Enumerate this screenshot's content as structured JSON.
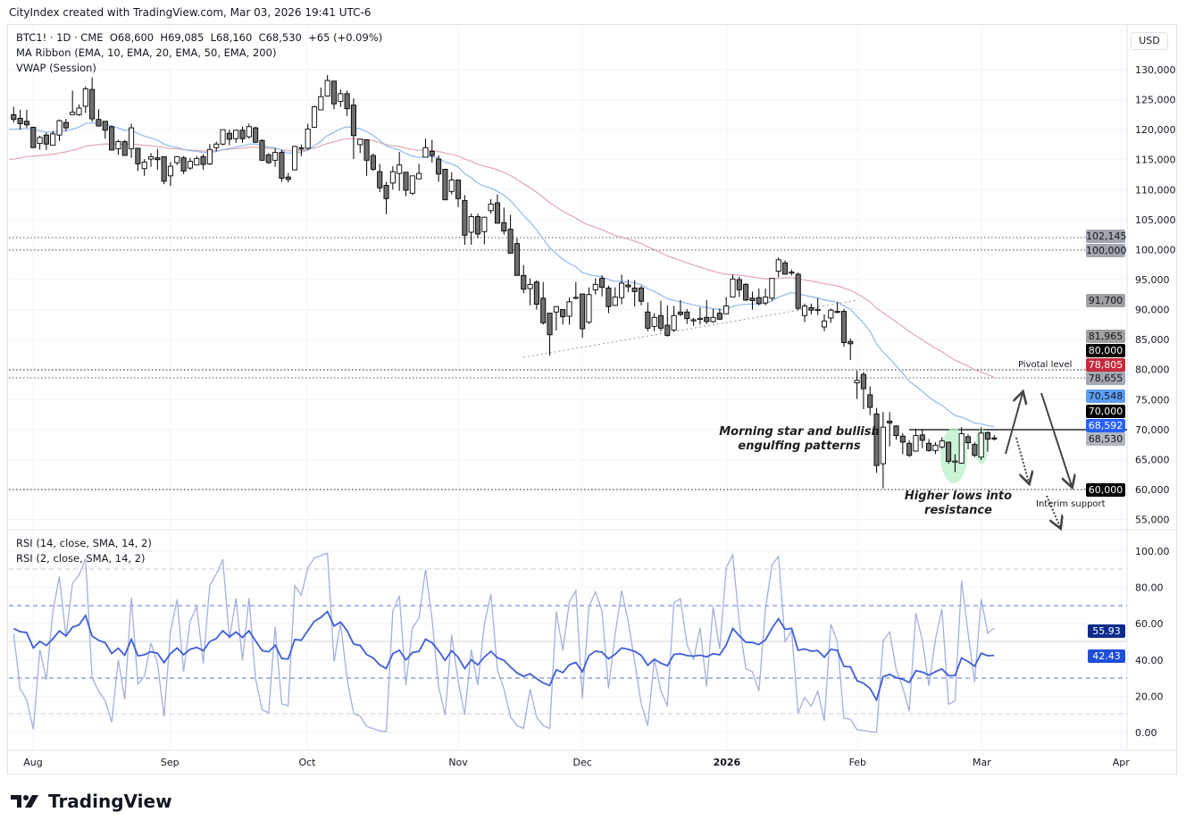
{
  "credit": "CityIndex created with TradingView.com, Mar 03, 2026 19:41 UTC-6",
  "legend": {
    "symbol_line": "BTC1! · 1D · CME  O68,600  H69,085  L68,160  C68,530  +65 (+0.09%)",
    "ma_ribbon": "MA Ribbon (EMA, 10, EMA, 20, EMA, 50, EMA, 200)",
    "vwap": "VWAP (Session)",
    "rsi14": "RSI (14, close, SMA, 14, 2)",
    "rsi2": "RSI (2, close, SMA, 14, 2)"
  },
  "currency": "USD",
  "price_labels": [
    {
      "text": "102,145",
      "bg": "#a3a6af",
      "fg": "#131722"
    },
    {
      "text": "100,000",
      "bg": "#a3a6af",
      "fg": "#131722"
    },
    {
      "text": "91,700",
      "bg": "#a0a0a0",
      "fg": "#131722"
    },
    {
      "text": "81,965",
      "bg": "#a0a0a0",
      "fg": "#131722"
    },
    {
      "text": "80,000",
      "bg": "#000000",
      "fg": "#ffffff"
    },
    {
      "text": "78,805",
      "bg": "#c62b3c",
      "fg": "#ffffff"
    },
    {
      "text": "78,655",
      "bg": "#a3a6af",
      "fg": "#131722"
    },
    {
      "text": "70,548",
      "bg": "#5c9df5",
      "fg": "#131722"
    },
    {
      "text": "70,000",
      "bg": "#000000",
      "fg": "#ffffff"
    },
    {
      "text": "68,592",
      "bg": "#2962ff",
      "fg": "#ffffff"
    },
    {
      "text": "68,530",
      "bg": "#b2b5be",
      "fg": "#131722"
    },
    {
      "text": "60,000",
      "bg": "#000000",
      "fg": "#ffffff"
    }
  ],
  "rsi_labels": [
    {
      "text": "55.93",
      "bg": "#0d2b8c",
      "fg": "#ffffff"
    },
    {
      "text": "42.43",
      "bg": "#1e4fd8",
      "fg": "#ffffff"
    }
  ],
  "annotations": {
    "pivotal": "Pivotal level",
    "interim": "Interim support",
    "morning_star_1": "Morning star and bullish",
    "morning_star_2": "engulfing patterns",
    "higher_lows_1": "Higher lows into",
    "higher_lows_2": "resistance"
  },
  "logo_text": "TradingView",
  "colors": {
    "ema20": "#90b8ee",
    "ema50": "#e0a8ae",
    "rsi14": "#3f5fd6",
    "rsi2": "#a3b0dc",
    "highlight": "#b9f0c9"
  },
  "chart_data": [
    {
      "type": "candlestick",
      "symbol": "BTC1!",
      "interval": "1D",
      "x_tick_labels": [
        "Aug",
        "Sep",
        "Oct",
        "Nov",
        "Dec",
        "2026",
        "Feb",
        "Mar",
        "Apr"
      ],
      "y_tick_labels": [
        "130,000",
        "125,000",
        "120,000",
        "115,000",
        "110,000",
        "105,000",
        "100,000",
        "95,000",
        "90,000",
        "85,000",
        "80,000",
        "75,000",
        "70,000",
        "65,000",
        "60,000",
        "55,000"
      ],
      "ylim": [
        53000,
        132000
      ],
      "grid": true,
      "overlays": [
        "EMA 20",
        "EMA 50"
      ],
      "horizontal_levels": [
        102145,
        100000,
        80000,
        78655,
        70000,
        60000
      ],
      "ohlc": [
        [
          122500,
          123800,
          121200,
          121700
        ],
        [
          121900,
          123300,
          120000,
          121000
        ],
        [
          121400,
          123300,
          120300,
          120800
        ],
        [
          120400,
          120500,
          117000,
          117000
        ],
        [
          117700,
          119000,
          116700,
          118700
        ],
        [
          119100,
          119500,
          116600,
          117600
        ],
        [
          117400,
          119800,
          117400,
          119300
        ],
        [
          119100,
          121700,
          118100,
          121500
        ],
        [
          121200,
          121800,
          119800,
          120300
        ],
        [
          122500,
          126500,
          122500,
          122900
        ],
        [
          122500,
          124200,
          122300,
          123600
        ],
        [
          123900,
          127200,
          122800,
          126800
        ],
        [
          126700,
          128700,
          121300,
          121800
        ],
        [
          121700,
          123400,
          120600,
          120600
        ],
        [
          121400,
          121400,
          118500,
          119900
        ],
        [
          120500,
          120700,
          116600,
          116600
        ],
        [
          116800,
          118300,
          115800,
          118000
        ],
        [
          118000,
          118300,
          115700,
          115700
        ],
        [
          116800,
          121000,
          115300,
          120300
        ],
        [
          116900,
          116900,
          113100,
          114300
        ],
        [
          113500,
          115100,
          112300,
          114600
        ],
        [
          115100,
          116100,
          113800,
          115500
        ],
        [
          115300,
          116800,
          113300,
          115000
        ],
        [
          115500,
          115500,
          110900,
          111400
        ],
        [
          112300,
          114600,
          110600,
          113900
        ],
        [
          114500,
          115600,
          114100,
          115500
        ],
        [
          115300,
          115600,
          112600,
          113100
        ],
        [
          113600,
          115300,
          113300,
          114700
        ],
        [
          114100,
          115600,
          114100,
          115200
        ],
        [
          115500,
          115900,
          113300,
          114200
        ],
        [
          114300,
          117600,
          114100,
          116700
        ],
        [
          117000,
          118000,
          116400,
          117600
        ],
        [
          117600,
          120000,
          117400,
          120000
        ],
        [
          119400,
          120000,
          117400,
          118400
        ],
        [
          118500,
          120000,
          117800,
          119900
        ],
        [
          119900,
          120500,
          117800,
          118500
        ],
        [
          118800,
          121000,
          118500,
          120500
        ],
        [
          120300,
          120500,
          117800,
          117900
        ],
        [
          118200,
          118400,
          114800,
          114900
        ],
        [
          115800,
          116100,
          114300,
          114500
        ],
        [
          114900,
          116900,
          113800,
          116200
        ],
        [
          116200,
          116600,
          111300,
          111900
        ],
        [
          112100,
          112800,
          111200,
          111700
        ],
        [
          113300,
          117300,
          113200,
          117200
        ],
        [
          116900,
          117500,
          115600,
          116950
        ],
        [
          116900,
          121000,
          116600,
          120100
        ],
        [
          120400,
          124000,
          120400,
          123800
        ],
        [
          123300,
          127000,
          123300,
          125500
        ],
        [
          125600,
          129100,
          125600,
          128200
        ],
        [
          128100,
          128100,
          123400,
          124300
        ],
        [
          124700,
          126700,
          123800,
          126000
        ],
        [
          126000,
          126500,
          122300,
          123500
        ],
        [
          124100,
          125200,
          115100,
          119000
        ],
        [
          117500,
          118400,
          116100,
          118400
        ],
        [
          118300,
          118400,
          112300,
          114900
        ],
        [
          115700,
          116000,
          113100,
          113400
        ],
        [
          113000,
          114300,
          109600,
          110300
        ],
        [
          110700,
          111300,
          105900,
          108500
        ],
        [
          111100,
          113900,
          110000,
          113000
        ],
        [
          112700,
          116300,
          109800,
          114100
        ],
        [
          112900,
          112900,
          108900,
          109900
        ],
        [
          109400,
          112300,
          109100,
          112300
        ],
        [
          111800,
          114300,
          111800,
          112700
        ],
        [
          115400,
          118500,
          115400,
          117000
        ],
        [
          116400,
          118300,
          114500,
          115700
        ],
        [
          115100,
          115700,
          111300,
          112600
        ],
        [
          113400,
          113400,
          108300,
          108300
        ],
        [
          109700,
          112900,
          109200,
          111600
        ],
        [
          111600,
          111600,
          107100,
          108500
        ],
        [
          108200,
          109100,
          100800,
          102400
        ],
        [
          102900,
          106000,
          100800,
          105500
        ],
        [
          105500,
          106000,
          101900,
          102600
        ],
        [
          103000,
          105500,
          100900,
          105400
        ],
        [
          106500,
          108400,
          106000,
          107600
        ],
        [
          107800,
          109200,
          104400,
          104400
        ],
        [
          104500,
          107000,
          102500,
          103100
        ],
        [
          103400,
          105800,
          99400,
          99400
        ],
        [
          101000,
          101900,
          95700,
          95700
        ],
        [
          95700,
          97400,
          92700,
          93400
        ],
        [
          93500,
          95200,
          90700,
          94200
        ],
        [
          94600,
          94900,
          90000,
          90900
        ],
        [
          91900,
          94600,
          87500,
          87800
        ],
        [
          89400,
          89400,
          82300,
          85800
        ],
        [
          89600,
          90600,
          86500,
          90500
        ],
        [
          90000,
          90000,
          87500,
          88800
        ],
        [
          88900,
          92000,
          87500,
          91300
        ],
        [
          92000,
          94600,
          91700,
          92050
        ],
        [
          92600,
          92600,
          85300,
          86800
        ],
        [
          87900,
          93700,
          87600,
          92500
        ],
        [
          93300,
          95200,
          92500,
          94200
        ],
        [
          95200,
          95700,
          92200,
          93700
        ],
        [
          93600,
          94000,
          89400,
          90500
        ],
        [
          90700,
          93700,
          90600,
          92100
        ],
        [
          92000,
          95800,
          90900,
          94400
        ],
        [
          94100,
          95000,
          92900,
          93800
        ],
        [
          93600,
          94900,
          90500,
          93000
        ],
        [
          93600,
          94000,
          90700,
          91400
        ],
        [
          89600,
          91200,
          86400,
          86900
        ],
        [
          87200,
          89400,
          86400,
          88700
        ],
        [
          89000,
          91500,
          86400,
          86900
        ],
        [
          87400,
          90700,
          85500,
          85700
        ],
        [
          86600,
          90600,
          86300,
          89000
        ],
        [
          89600,
          91600,
          88900,
          89200
        ],
        [
          89600,
          90100,
          87600,
          88500
        ],
        [
          88200,
          88600,
          87300,
          88300
        ],
        [
          88500,
          90400,
          87500,
          88550
        ],
        [
          88700,
          91600,
          87600,
          88000
        ],
        [
          88000,
          90100,
          87800,
          88700
        ],
        [
          89400,
          90200,
          88300,
          88400
        ],
        [
          89300,
          92100,
          89300,
          90600
        ],
        [
          92100,
          95800,
          92100,
          95100
        ],
        [
          95000,
          95500,
          92100,
          93300
        ],
        [
          94200,
          94400,
          91400,
          91600
        ],
        [
          91900,
          93000,
          90000,
          91500
        ],
        [
          92000,
          93500,
          90700,
          91000
        ],
        [
          91100,
          93500,
          90700,
          92100
        ],
        [
          91900,
          95200,
          91500,
          95200
        ],
        [
          96400,
          98700,
          95400,
          98300
        ],
        [
          97800,
          98200,
          95900,
          95900
        ],
        [
          96200,
          96700,
          95700,
          96250
        ],
        [
          95900,
          96200,
          89900,
          90200
        ],
        [
          89000,
          91000,
          87900,
          90600
        ],
        [
          90300,
          91000,
          89200,
          89900
        ],
        [
          90000,
          91900,
          89100,
          90050
        ],
        [
          87100,
          89200,
          86400,
          88100
        ],
        [
          88600,
          90200,
          87800,
          89900
        ],
        [
          89700,
          91200,
          89400,
          89600
        ],
        [
          89700,
          90100,
          83800,
          84500
        ],
        [
          84700,
          85200,
          81600,
          84300
        ],
        [
          77800,
          79800,
          75100,
          78200
        ],
        [
          79200,
          79600,
          73400,
          76800
        ],
        [
          75800,
          77200,
          72400,
          73700
        ],
        [
          72600,
          73600,
          62800,
          64000
        ],
        [
          64300,
          72900,
          60200,
          70400
        ],
        [
          71400,
          72900,
          67200,
          71100
        ],
        [
          70600,
          70700,
          68300,
          69000
        ],
        [
          68900,
          69400,
          65900,
          67900
        ],
        [
          67700,
          68200,
          65400,
          65700
        ],
        [
          66400,
          70100,
          66300,
          69000
        ],
        [
          69100,
          70100,
          66900,
          68200
        ],
        [
          67700,
          68400,
          66300,
          66500
        ],
        [
          66500,
          67900,
          65900,
          67400
        ],
        [
          67100,
          68700,
          66800,
          68100
        ],
        [
          67900,
          67900,
          64300,
          64700
        ],
        [
          64700,
          65900,
          62900,
          64750
        ],
        [
          64400,
          70400,
          64300,
          69300
        ],
        [
          68800,
          69200,
          66700,
          67800
        ],
        [
          67500,
          67900,
          65400,
          65700
        ],
        [
          65400,
          70400,
          64900,
          69400
        ],
        [
          69500,
          69700,
          66300,
          68400
        ],
        [
          68600,
          69085,
          68160,
          68530
        ]
      ]
    },
    {
      "type": "line",
      "title": "RSI",
      "series": [
        {
          "name": "RSI (14, close, SMA, 14, 2)",
          "last": 42.43
        },
        {
          "name": "RSI (2, close, SMA, 14, 2)",
          "last": 55.93
        }
      ],
      "y_tick_labels": [
        "100.00",
        "80.00",
        "60.00",
        "40.00",
        "20.00",
        "0.00"
      ],
      "ylim": [
        0,
        100
      ],
      "bands": [
        90,
        70,
        50,
        30,
        10
      ]
    }
  ]
}
